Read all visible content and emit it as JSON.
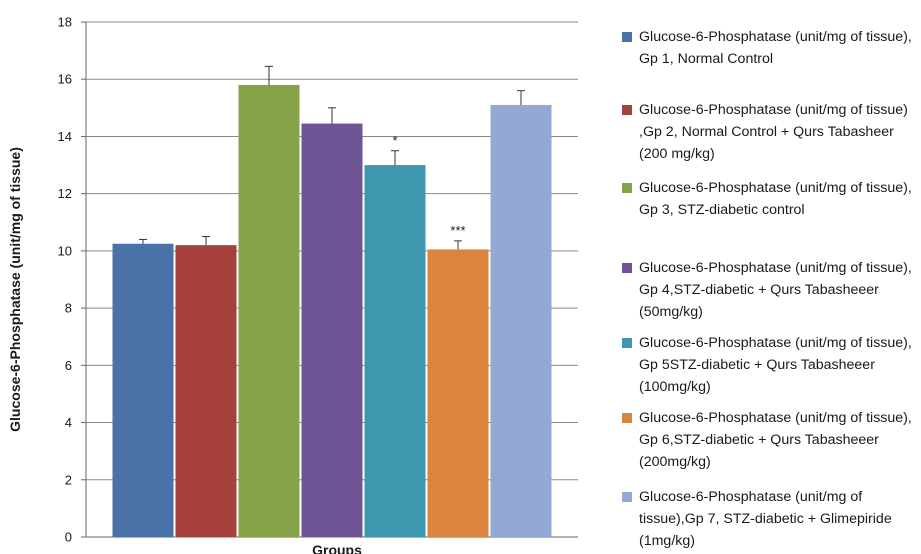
{
  "chart_data": {
    "type": "bar",
    "title": "",
    "xlabel": "Groups",
    "ylabel": "Glucose-6-Phosphatase  (unit/mg of tissue)",
    "ylim": [
      0,
      18
    ],
    "yticks": [
      0,
      2,
      4,
      6,
      8,
      10,
      12,
      14,
      16,
      18
    ],
    "grid": true,
    "legend_position": "right",
    "series": [
      {
        "name": "Glucose-6-Phosphatase (unit/mg of tissue), Gp 1, Normal Control",
        "value": 10.25,
        "error": 0.15,
        "color": "#4A72A8",
        "annotation": ""
      },
      {
        "name": "Glucose-6-Phosphatase (unit/mg of tissue) ,Gp 2, Normal Control + Qurs Tabasheer (200 mg/kg)",
        "value": 10.2,
        "error": 0.3,
        "color": "#A6403C",
        "annotation": ""
      },
      {
        "name": "Glucose-6-Phosphatase (unit/mg of tissue), Gp 3, STZ-diabetic control",
        "value": 15.8,
        "error": 0.65,
        "color": "#86A34A",
        "annotation": ""
      },
      {
        "name": "Glucose-6-Phosphatase (unit/mg of tissue), Gp 4,STZ-diabetic + Qurs Tabasheeer (50mg/kg)",
        "value": 14.45,
        "error": 0.55,
        "color": "#6E5494",
        "annotation": ""
      },
      {
        "name": "Glucose-6-Phosphatase (unit/mg of tissue), Gp 5STZ-diabetic + Qurs Tabasheeer (100mg/kg)",
        "value": 13.0,
        "error": 0.5,
        "color": "#3D97AE",
        "annotation": "*"
      },
      {
        "name": "Glucose-6-Phosphatase (unit/mg of tissue), Gp 6,STZ-diabetic + Qurs Tabasheeer (200mg/kg)",
        "value": 10.05,
        "error": 0.3,
        "color": "#DB843D",
        "annotation": "***"
      },
      {
        "name": "Glucose-6-Phosphatase (unit/mg of tissue),Gp 7, STZ-diabetic + Glimepiride (1mg/kg)",
        "value": 15.1,
        "error": 0.5,
        "color": "#93A9D3",
        "annotation": ""
      }
    ]
  }
}
